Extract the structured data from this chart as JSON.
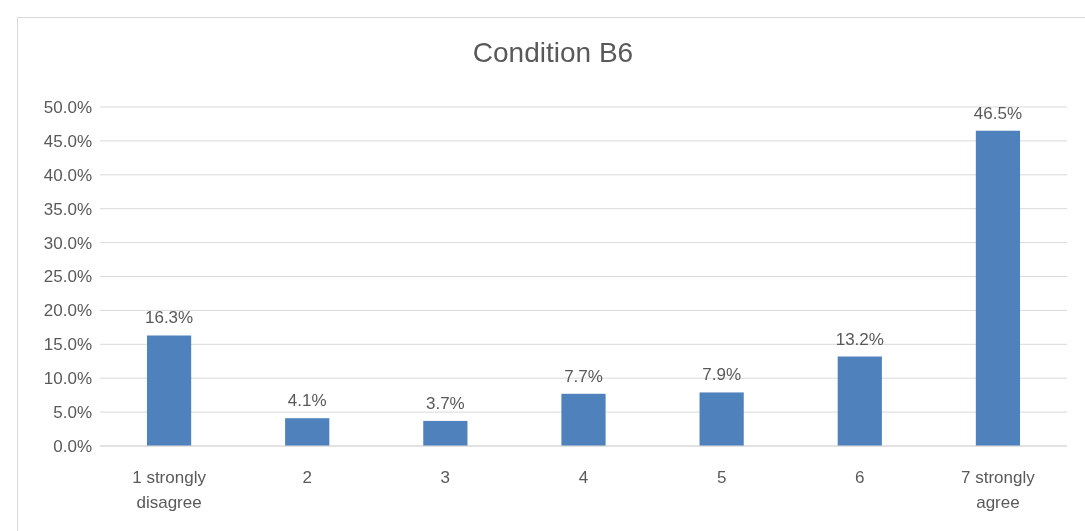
{
  "chart_data": {
    "type": "bar",
    "title": "Condition B6",
    "categories": [
      "1 strongly disagree",
      "2",
      "3",
      "4",
      "5",
      "6",
      "7 strongly agree"
    ],
    "values": [
      16.3,
      4.1,
      3.7,
      7.7,
      7.9,
      13.2,
      46.5
    ],
    "value_labels": [
      "16.3%",
      "4.1%",
      "3.7%",
      "7.7%",
      "7.9%",
      "13.2%",
      "46.5%"
    ],
    "color": "#4f81bd",
    "ylim": [
      0,
      50
    ],
    "yticks": [
      {
        "value": 0,
        "label": "0.0%"
      },
      {
        "value": 5,
        "label": "5.0%"
      },
      {
        "value": 10,
        "label": "10.0%"
      },
      {
        "value": 15,
        "label": "15.0%"
      },
      {
        "value": 20,
        "label": "20.0%"
      },
      {
        "value": 25,
        "label": "25.0%"
      },
      {
        "value": 30,
        "label": "30.0%"
      },
      {
        "value": 35,
        "label": "35.0%"
      },
      {
        "value": 40,
        "label": "40.0%"
      },
      {
        "value": 45,
        "label": "45.0%"
      },
      {
        "value": 50,
        "label": "50.0%"
      }
    ],
    "grid": "y"
  }
}
